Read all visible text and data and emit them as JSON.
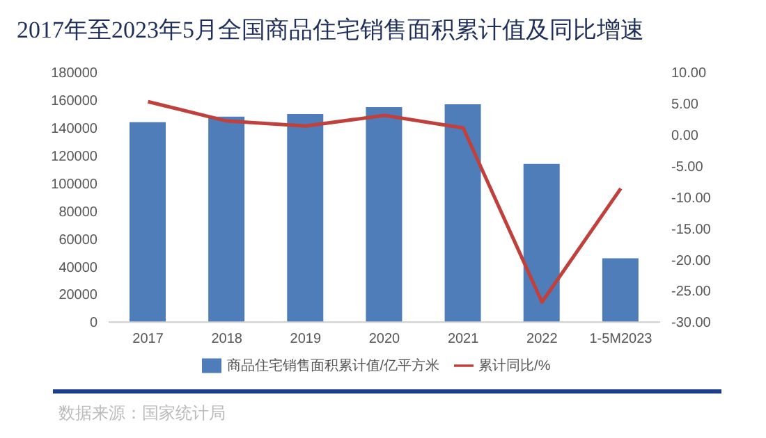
{
  "chart_data": {
    "type": "bar",
    "title": "2017年至2023年5月全国商品住宅销售面积累计值及同比增速",
    "categories": [
      "2017",
      "2018",
      "2019",
      "2020",
      "2021",
      "2022",
      "1-5M2023"
    ],
    "series": [
      {
        "name": "商品住宅销售面积累计值/亿平方米",
        "color": "#4f7dba",
        "values": [
          144000,
          148000,
          150000,
          155000,
          157000,
          114000,
          46000
        ]
      },
      {
        "name": "累计同比/%",
        "type": "line",
        "axis": "y2",
        "color": "#c0403b",
        "values": [
          5.3,
          2.2,
          1.4,
          3.1,
          1.1,
          -26.8,
          -8.6
        ]
      }
    ],
    "ylim": [
      0,
      180000
    ],
    "yticks": [
      0,
      20000,
      40000,
      60000,
      80000,
      100000,
      120000,
      140000,
      160000,
      180000
    ],
    "y2lim": [
      -30,
      10
    ],
    "y2ticks": [
      {
        "value": 10,
        "label": "10.00"
      },
      {
        "value": 5,
        "label": "5.00"
      },
      {
        "value": 0,
        "label": "0.00"
      },
      {
        "value": -5,
        "label": "-5.00"
      },
      {
        "value": -10,
        "label": "-10.00"
      },
      {
        "value": -15,
        "label": "-15.00"
      },
      {
        "value": -20,
        "label": "-20.00"
      },
      {
        "value": -25,
        "label": "-25.00"
      },
      {
        "value": -30,
        "label": "-30.00"
      }
    ],
    "legend": "bottom",
    "marker": "none",
    "annotations": [
      "数据来源：国家统计局"
    ]
  }
}
